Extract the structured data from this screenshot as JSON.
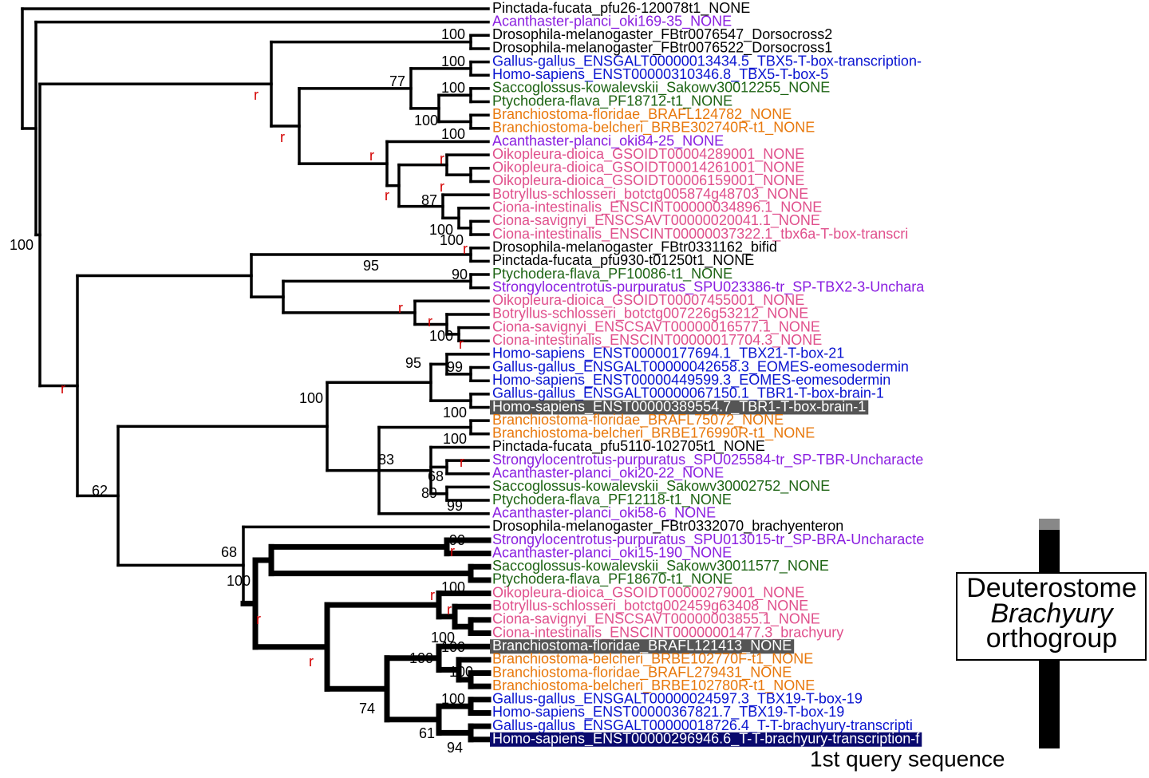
{
  "leaves": [
    {
      "label": "Pinctada-fucata_pfu26-120078t1_NONE",
      "color": "#000000"
    },
    {
      "label": "Acanthaster-planci_oki169-35_NONE",
      "color": "#8a1ee0"
    },
    {
      "label": "Drosophila-melanogaster_FBtr0076547_Dorsocross2",
      "color": "#000000"
    },
    {
      "label": "Drosophila-melanogaster_FBtr0076522_Dorsocross1",
      "color": "#000000"
    },
    {
      "label": "Gallus-gallus_ENSGALT00000013434.5_TBX5-T-box-transcription-",
      "color": "#0a14d0"
    },
    {
      "label": "Homo-sapiens_ENST00000310346.8_TBX5-T-box-5",
      "color": "#0a14d0"
    },
    {
      "label": "Saccoglossus-kowalevskii_Sakowv30012255_NONE",
      "color": "#1e6414"
    },
    {
      "label": "Ptychodera-flava_PF18712-t1_NONE",
      "color": "#1e6414"
    },
    {
      "label": "Branchiostoma-floridae_BRAFL124782_NONE",
      "color": "#e8780c"
    },
    {
      "label": "Branchiostoma-belcheri_BRBE302740R-t1_NONE",
      "color": "#e8780c"
    },
    {
      "label": "Acanthaster-planci_oki84-25_NONE",
      "color": "#8a1ee0"
    },
    {
      "label": "Oikopleura-dioica_GSOIDT00004289001_NONE",
      "color": "#e0508c"
    },
    {
      "label": "Oikopleura-dioica_GSOIDT00014261001_NONE",
      "color": "#e0508c"
    },
    {
      "label": "Oikopleura-dioica_GSOIDT00006159001_NONE",
      "color": "#e0508c"
    },
    {
      "label": "Botryllus-schlosseri_botctg005874g48703_NONE",
      "color": "#e0508c"
    },
    {
      "label": "Ciona-intestinalis_ENSCINT00000034896.1_NONE",
      "color": "#e0508c"
    },
    {
      "label": "Ciona-savignyi_ENSCSAVT00000020041.1_NONE",
      "color": "#e0508c"
    },
    {
      "label": "Ciona-intestinalis_ENSCINT00000037322.1_tbx6a-T-box-transcri",
      "color": "#e0508c"
    },
    {
      "label": "Drosophila-melanogaster_FBtr0331162_bifid",
      "color": "#000000"
    },
    {
      "label": "Pinctada-fucata_pfu930-t01250t1_NONE",
      "color": "#000000"
    },
    {
      "label": "Ptychodera-flava_PF10086-t1_NONE",
      "color": "#1e6414"
    },
    {
      "label": "Strongylocentrotus-purpuratus_SPU023386-tr_SP-TBX2-3-Unchara",
      "color": "#8a1ee0"
    },
    {
      "label": "Oikopleura-dioica_GSOIDT00007455001_NONE",
      "color": "#e0508c"
    },
    {
      "label": "Botryllus-schlosseri_botctg007226g53212_NONE",
      "color": "#e0508c"
    },
    {
      "label": "Ciona-savignyi_ENSCSAVT00000016577.1_NONE",
      "color": "#e0508c"
    },
    {
      "label": "Ciona-intestinalis_ENSCINT00000017704.3_NONE",
      "color": "#e0508c"
    },
    {
      "label": "Homo-sapiens_ENST00000177694.1_TBX21-T-box-21",
      "color": "#0a14d0"
    },
    {
      "label": "Gallus-gallus_ENSGALT00000042658.3_EOMES-eomesodermin",
      "color": "#0a14d0"
    },
    {
      "label": "Homo-sapiens_ENST00000449599.3_EOMES-eomesodermin",
      "color": "#0a14d0"
    },
    {
      "label": "Gallus-gallus_ENSGALT00000067150.1_TBR1-T-box-brain-1",
      "color": "#0a14d0"
    },
    {
      "label": "Homo-sapiens_ENST00000389554.7_TBR1-T-box-brain-1",
      "color": "#ffffff",
      "highlight": "#555555"
    },
    {
      "label": "Branchiostoma-floridae_BRAFL75072_NONE",
      "color": "#e8780c"
    },
    {
      "label": "Branchiostoma-belcheri_BRBE176990R-t1_NONE",
      "color": "#e8780c"
    },
    {
      "label": "Pinctada-fucata_pfu5110-102705t1_NONE",
      "color": "#000000"
    },
    {
      "label": "Strongylocentrotus-purpuratus_SPU025584-tr_SP-TBR-Uncharacte",
      "color": "#8a1ee0"
    },
    {
      "label": "Acanthaster-planci_oki20-22_NONE",
      "color": "#8a1ee0"
    },
    {
      "label": "Saccoglossus-kowalevskii_Sakowv30002752_NONE",
      "color": "#1e6414"
    },
    {
      "label": "Ptychodera-flava_PF12118-t1_NONE",
      "color": "#1e6414"
    },
    {
      "label": "Acanthaster-planci_oki58-6_NONE",
      "color": "#8a1ee0"
    },
    {
      "label": "Drosophila-melanogaster_FBtr0332070_brachyenteron",
      "color": "#000000"
    },
    {
      "label": "Strongylocentrotus-purpuratus_SPU013015-tr_SP-BRA-Uncharacte",
      "color": "#8a1ee0"
    },
    {
      "label": "Acanthaster-planci_oki15-190_NONE",
      "color": "#8a1ee0"
    },
    {
      "label": "Saccoglossus-kowalevskii_Sakowv30011577_NONE",
      "color": "#1e6414"
    },
    {
      "label": "Ptychodera-flava_PF18670-t1_NONE",
      "color": "#1e6414"
    },
    {
      "label": "Oikopleura-dioica_GSOIDT00000279001_NONE",
      "color": "#e0508c"
    },
    {
      "label": "Botryllus-schlosseri_botctg002459g63408_NONE",
      "color": "#e0508c"
    },
    {
      "label": "Ciona-savignyi_ENSCSAVT00000003855.1_NONE",
      "color": "#e0508c"
    },
    {
      "label": "Ciona-intestinalis_ENSCINT00000001477.3_brachyury",
      "color": "#e0508c"
    },
    {
      "label": "Branchiostoma-floridae_BRAFL121413_NONE",
      "color": "#ffffff",
      "highlight": "#555555"
    },
    {
      "label": "Branchiostoma-belcheri_BRBE102770F-t1_NONE",
      "color": "#e8780c"
    },
    {
      "label": "Branchiostoma-floridae_BRAFL279431_NONE",
      "color": "#e8780c"
    },
    {
      "label": "Branchiostoma-belcheri_BRBE102780R-t1_NONE",
      "color": "#e8780c"
    },
    {
      "label": "Gallus-gallus_ENSGALT00000024597.3_TBX19-T-box-19",
      "color": "#0a14d0"
    },
    {
      "label": "Homo-sapiens_ENST00000367821.7_TBX19-T-box-19",
      "color": "#0a14d0"
    },
    {
      "label": "Gallus-gallus_ENSGALT00000018726.4_T-T-brachyury-transcripti",
      "color": "#0a14d0"
    },
    {
      "label": "Homo-sapiens_ENST00000296946.6_T-T-brachyury-transcription-f",
      "color": "#ffffff",
      "highlight": "#0a0a6e"
    }
  ],
  "support": [
    {
      "label": "100",
      "color": "#000000"
    },
    {
      "label": "100",
      "color": "#000000"
    },
    {
      "label": "77",
      "color": "#000000"
    },
    {
      "label": "r",
      "color": "#d40000"
    },
    {
      "label": "100",
      "color": "#000000"
    },
    {
      "label": "100",
      "color": "#000000"
    },
    {
      "label": "r",
      "color": "#d40000"
    },
    {
      "label": "100",
      "color": "#000000"
    },
    {
      "label": "r",
      "color": "#d40000"
    },
    {
      "label": "r",
      "color": "#d40000"
    },
    {
      "label": "r",
      "color": "#d40000"
    },
    {
      "label": "r",
      "color": "#d40000"
    },
    {
      "label": "87",
      "color": "#000000"
    },
    {
      "label": "100",
      "color": "#000000"
    },
    {
      "label": "100",
      "color": "#000000"
    },
    {
      "label": "100",
      "color": "#000000"
    },
    {
      "label": "r",
      "color": "#d40000"
    },
    {
      "label": "95",
      "color": "#000000"
    },
    {
      "label": "90",
      "color": "#000000"
    },
    {
      "label": "r",
      "color": "#d40000"
    },
    {
      "label": "r",
      "color": "#d40000"
    },
    {
      "label": "r",
      "color": "#d40000"
    },
    {
      "label": "100",
      "color": "#000000"
    },
    {
      "label": "r",
      "color": "#d40000"
    },
    {
      "label": "95",
      "color": "#000000"
    },
    {
      "label": "99",
      "color": "#000000"
    },
    {
      "label": "100",
      "color": "#000000"
    },
    {
      "label": "100",
      "color": "#000000"
    },
    {
      "label": "100",
      "color": "#000000"
    },
    {
      "label": "83",
      "color": "#000000"
    },
    {
      "label": "r",
      "color": "#d40000"
    },
    {
      "label": "68",
      "color": "#000000"
    },
    {
      "label": "89",
      "color": "#000000"
    },
    {
      "label": "99",
      "color": "#000000"
    },
    {
      "label": "62",
      "color": "#000000"
    },
    {
      "label": "68",
      "color": "#000000"
    },
    {
      "label": "90",
      "color": "#000000"
    },
    {
      "label": "r",
      "color": "#d40000"
    },
    {
      "label": "100",
      "color": "#000000"
    },
    {
      "label": "100",
      "color": "#000000"
    },
    {
      "label": "r",
      "color": "#d40000"
    },
    {
      "label": "r",
      "color": "#d40000"
    },
    {
      "label": "r",
      "color": "#d40000"
    },
    {
      "label": "100",
      "color": "#000000"
    },
    {
      "label": "100",
      "color": "#000000"
    },
    {
      "label": "r",
      "color": "#d40000"
    },
    {
      "label": "100",
      "color": "#000000"
    },
    {
      "label": "100",
      "color": "#000000"
    },
    {
      "label": "100",
      "color": "#000000"
    },
    {
      "label": "74",
      "color": "#000000"
    },
    {
      "label": "61",
      "color": "#000000"
    },
    {
      "label": "94",
      "color": "#000000"
    }
  ],
  "orthogroup": {
    "line1": "Deuterostome",
    "line2": "Brachyury",
    "line3": "orthogroup"
  },
  "query_note": "1st query sequence"
}
